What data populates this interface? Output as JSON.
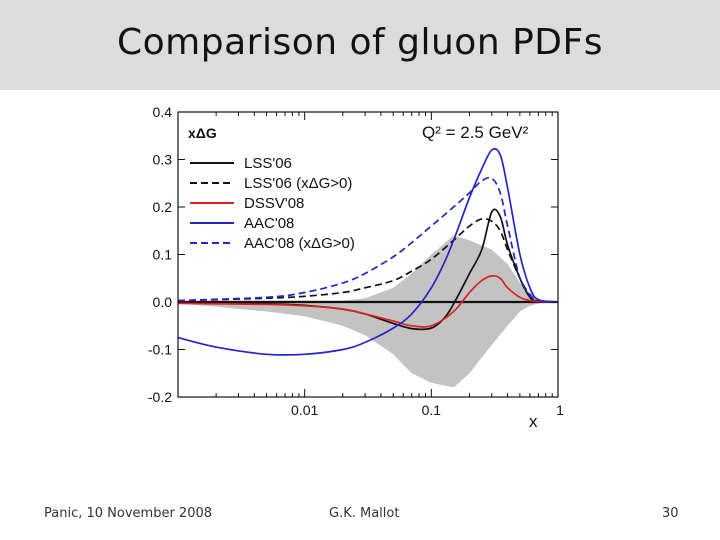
{
  "slide": {
    "title": "Comparison of gluon PDFs",
    "footer_left": "Panic, 10 November 2008",
    "footer_center": "G.K. Mallot",
    "footer_right": "30"
  },
  "colors": {
    "black": "#111111",
    "red": "#e02020",
    "blue": "#2424c8",
    "band": "#c3c3c3",
    "title_bg": "#dcdcdc"
  },
  "chart_data": {
    "type": "line",
    "ylabel": "xΔG",
    "xlabel": "x",
    "annotation": "Q² = 2.5 GeV²",
    "x_scale": "log",
    "xlim": [
      0.001,
      1
    ],
    "ylim": [
      -0.2,
      0.4
    ],
    "x_ticks": [
      {
        "value": 0.01,
        "label": "0.01"
      },
      {
        "value": 0.1,
        "label": "0.1"
      },
      {
        "value": 1,
        "label": "1"
      }
    ],
    "y_ticks": [
      {
        "value": 0.4,
        "label": "0.4"
      },
      {
        "value": 0.3,
        "label": "0.3"
      },
      {
        "value": 0.2,
        "label": "0.2"
      },
      {
        "value": 0.1,
        "label": "0.1"
      },
      {
        "value": 0.0,
        "label": "0.0"
      },
      {
        "value": -0.1,
        "label": "-0.1"
      },
      {
        "value": -0.2,
        "label": "-0.2"
      }
    ],
    "legend_position": "top-left",
    "band": {
      "x": [
        0.001,
        0.002,
        0.005,
        0.01,
        0.02,
        0.03,
        0.05,
        0.07,
        0.1,
        0.15,
        0.2,
        0.3,
        0.4,
        0.5,
        0.6,
        0.7,
        1.0
      ],
      "upper": [
        0.0,
        0.003,
        0.003,
        0.003,
        0.003,
        0.008,
        0.03,
        0.06,
        0.1,
        0.14,
        0.13,
        0.11,
        0.08,
        0.04,
        0.02,
        0.005,
        0.0
      ],
      "lower": [
        -0.003,
        -0.01,
        -0.02,
        -0.03,
        -0.05,
        -0.07,
        -0.11,
        -0.15,
        -0.17,
        -0.18,
        -0.15,
        -0.09,
        -0.05,
        -0.02,
        -0.008,
        -0.003,
        0.0
      ]
    },
    "series": [
      {
        "name": "LSS'06",
        "color": "#111111",
        "dash": "solid",
        "x": [
          0.001,
          0.005,
          0.01,
          0.02,
          0.03,
          0.05,
          0.07,
          0.1,
          0.13,
          0.16,
          0.2,
          0.25,
          0.3,
          0.35,
          0.4,
          0.5,
          0.6,
          0.7,
          1.0
        ],
        "y": [
          -0.002,
          -0.004,
          -0.007,
          -0.015,
          -0.025,
          -0.045,
          -0.056,
          -0.055,
          -0.03,
          0.01,
          0.06,
          0.11,
          0.19,
          0.18,
          0.12,
          0.05,
          0.01,
          0.002,
          0.0
        ]
      },
      {
        "name": "LSS'06 (xΔG>0)",
        "color": "#111111",
        "dash": "dashed",
        "x": [
          0.001,
          0.005,
          0.01,
          0.02,
          0.03,
          0.05,
          0.07,
          0.1,
          0.15,
          0.2,
          0.25,
          0.3,
          0.35,
          0.4,
          0.5,
          0.6,
          0.7,
          1.0
        ],
        "y": [
          0.003,
          0.008,
          0.012,
          0.02,
          0.03,
          0.045,
          0.065,
          0.09,
          0.13,
          0.16,
          0.175,
          0.17,
          0.15,
          0.11,
          0.05,
          0.015,
          0.003,
          0.0
        ]
      },
      {
        "name": "DSSV'08",
        "color": "#e02020",
        "dash": "solid",
        "x": [
          0.001,
          0.005,
          0.01,
          0.02,
          0.03,
          0.05,
          0.07,
          0.1,
          0.15,
          0.2,
          0.25,
          0.3,
          0.35,
          0.4,
          0.5,
          0.6,
          0.7,
          1.0
        ],
        "y": [
          -0.003,
          -0.005,
          -0.008,
          -0.015,
          -0.025,
          -0.04,
          -0.05,
          -0.05,
          -0.02,
          0.02,
          0.045,
          0.055,
          0.05,
          0.03,
          0.01,
          0.003,
          0.001,
          0.0
        ]
      },
      {
        "name": "AAC'08",
        "color": "#2424c8",
        "dash": "solid",
        "x": [
          0.001,
          0.002,
          0.005,
          0.01,
          0.02,
          0.03,
          0.05,
          0.07,
          0.1,
          0.13,
          0.16,
          0.2,
          0.25,
          0.3,
          0.35,
          0.4,
          0.5,
          0.6,
          0.7,
          1.0
        ],
        "y": [
          -0.075,
          -0.095,
          -0.11,
          -0.11,
          -0.1,
          -0.085,
          -0.055,
          -0.025,
          0.03,
          0.09,
          0.15,
          0.22,
          0.28,
          0.32,
          0.31,
          0.24,
          0.1,
          0.03,
          0.005,
          0.0
        ]
      },
      {
        "name": "AAC'08 (xΔG>0)",
        "color": "#2424c8",
        "dash": "dashed",
        "x": [
          0.001,
          0.005,
          0.01,
          0.02,
          0.03,
          0.05,
          0.07,
          0.1,
          0.15,
          0.2,
          0.25,
          0.3,
          0.35,
          0.4,
          0.5,
          0.6,
          0.7,
          1.0
        ],
        "y": [
          0.003,
          0.01,
          0.02,
          0.04,
          0.06,
          0.095,
          0.125,
          0.16,
          0.2,
          0.23,
          0.255,
          0.26,
          0.23,
          0.16,
          0.05,
          0.015,
          0.003,
          0.0
        ]
      }
    ]
  }
}
